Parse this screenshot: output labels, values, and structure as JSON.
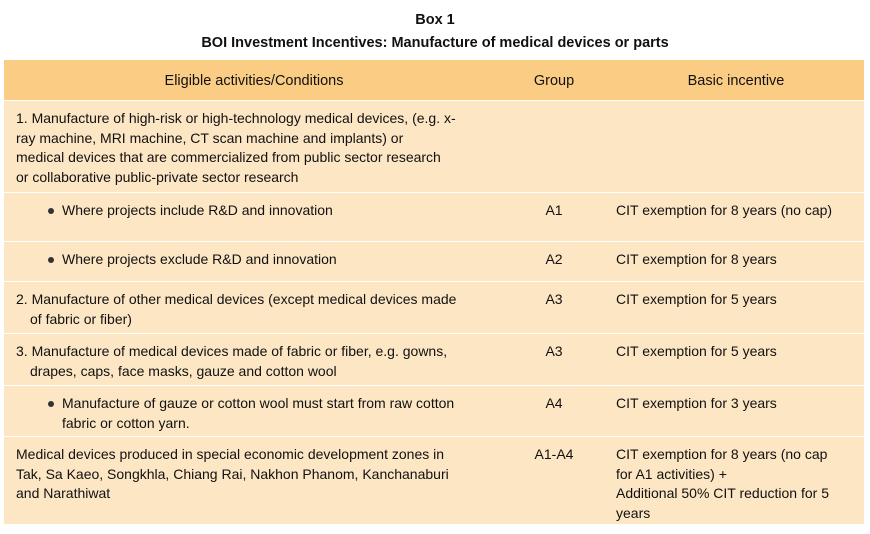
{
  "box": {
    "label": "Box 1",
    "title": "BOI Investment Incentives: Manufacture of medical devices or parts"
  },
  "table": {
    "headers": {
      "activities": "Eligible activities/Conditions",
      "group": "Group",
      "incentive": "Basic incentive"
    },
    "rows": [
      {
        "activity_lines": [
          "1. Manufacture of high-risk or high-technology medical devices, (e.g. x-",
          "ray machine, MRI machine, CT scan machine and implants) or",
          "medical devices that are commercialized from public sector research",
          "or collaborative public-private sector research"
        ],
        "group": "",
        "incentive_lines": []
      },
      {
        "activity_lines": [
          "Where projects include R&D and innovation"
        ],
        "group": "A1",
        "incentive_lines": [
          "CIT exemption for 8 years (no cap)"
        ],
        "bullet": true
      },
      {
        "activity_lines": [
          "Where projects exclude R&D and innovation"
        ],
        "group": "A2",
        "incentive_lines": [
          "CIT exemption for 8 years"
        ],
        "bullet": true
      },
      {
        "activity_lines": [
          "2. Manufacture of other medical devices (except medical devices made",
          "of fabric or fiber)"
        ],
        "group": "A3",
        "incentive_lines": [
          "CIT exemption for 5 years"
        ]
      },
      {
        "activity_lines": [
          "3. Manufacture of medical devices made of fabric or fiber, e.g. gowns,",
          "drapes, caps, face masks, gauze and cotton wool"
        ],
        "group": "A3",
        "incentive_lines": [
          "CIT exemption for 5 years"
        ]
      },
      {
        "activity_lines": [
          "Manufacture of gauze or cotton wool must start from raw cotton",
          "fabric or cotton yarn."
        ],
        "group": "A4",
        "incentive_lines": [
          "CIT exemption for 3 years"
        ],
        "bullet": true
      },
      {
        "activity_lines": [
          "Medical devices produced in special economic development zones in",
          "Tak, Sa Kaeo, Songkhla, Chiang Rai, Nakhon Phanom, Kanchanaburi",
          "and Narathiwat"
        ],
        "group": "A1-A4",
        "incentive_lines": [
          "CIT exemption for 8 years (no cap",
          "for A1 activities) +",
          "Additional 50% CIT reduction for 5",
          "years"
        ]
      }
    ]
  }
}
